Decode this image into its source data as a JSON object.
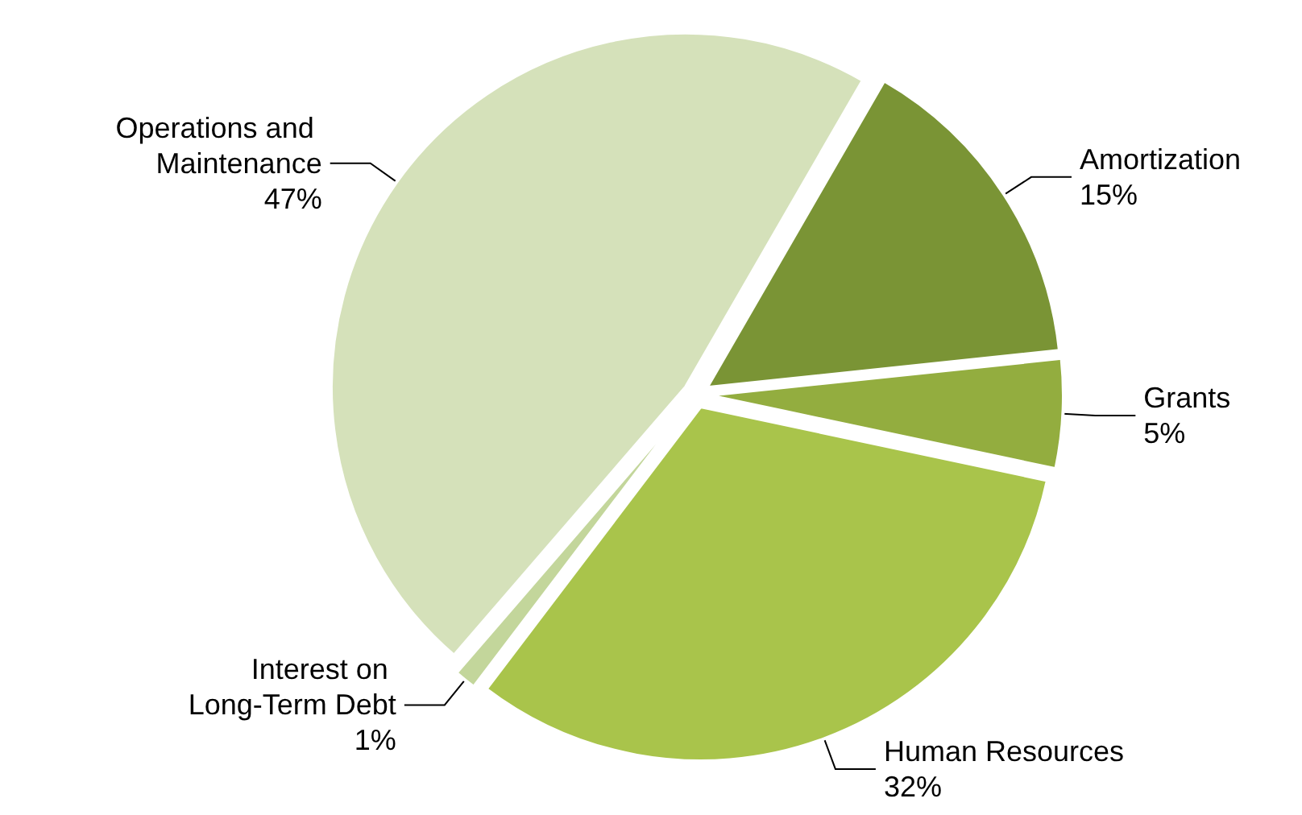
{
  "chart_data": {
    "type": "pie",
    "categories": [
      "Amortization",
      "Grants",
      "Human Resources",
      "Interest on Long-Term Debt",
      "Operations and Maintenance"
    ],
    "values": [
      15,
      5,
      32,
      1,
      47
    ],
    "value_labels": [
      "15%",
      "5%",
      "32%",
      "1%",
      "47%"
    ],
    "colors": [
      "#7a9435",
      "#93ad3f",
      "#a9c44b",
      "#c3d69b",
      "#d5e1ba"
    ],
    "legend": false
  }
}
